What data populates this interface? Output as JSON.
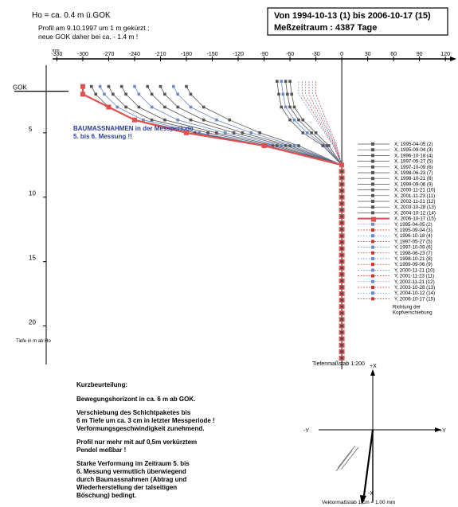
{
  "header": {
    "ho": "Ho = ca. 0.4 m  ü.GOK",
    "note_line1": "Profil am 9.10.1997 um 1 m gekürzt ;",
    "note_line2": "neue GOK daher bei ca.  - 1.4 m !",
    "period_line1": "Von 1994-10-13 (1) bis 2006-10-17 (15)",
    "period_line2": "Meßzeitraum : 4387 Tage"
  },
  "chart_data": {
    "type": "line",
    "title": "",
    "xlabel": "mm",
    "ylabel": "Tiefe in m ab Ho",
    "x_ticks": [
      -330,
      -300,
      -270,
      -240,
      -210,
      -180,
      -150,
      -120,
      -90,
      -60,
      -30,
      0,
      30,
      60,
      90,
      120
    ],
    "x_tick_labels": [
      "-330",
      "-300",
      "-270",
      "-240",
      "-210",
      "-180",
      "-150",
      "-120",
      "-90",
      "-60",
      "-30",
      "0",
      "30",
      "60",
      "90",
      "120"
    ],
    "xlim": [
      -335,
      130
    ],
    "y_ticks": [
      5,
      10,
      15,
      20
    ],
    "ylim": [
      0,
      23
    ],
    "gok_label": "GOK",
    "gok_depth": 1.4,
    "annotation_line1": "BAUMASSNAHMEN  in der Messperiode",
    "annotation_line2": "5. bis 6. Messung !!",
    "scale_label": "Tiefenmaßstab 1:200",
    "series_x": [
      {
        "name": "X, 1995-04-05 (2)",
        "depth": [
          1,
          2,
          3,
          4,
          5,
          6,
          7.5
        ],
        "values": [
          -60,
          -58,
          -55,
          -45,
          -30,
          -15,
          0
        ]
      },
      {
        "name": "X, 1995-09-04 (3)",
        "depth": [
          1,
          2,
          3,
          4,
          5,
          6,
          7.5
        ],
        "values": [
          -65,
          -63,
          -60,
          -50,
          -35,
          -18,
          0
        ]
      },
      {
        "name": "X, 1996-10-18 (4)",
        "depth": [
          1,
          2,
          3,
          4,
          5,
          6,
          7.5
        ],
        "values": [
          -70,
          -68,
          -65,
          -55,
          -40,
          -20,
          0
        ]
      },
      {
        "name": "X, 1997-05-27 (5)",
        "depth": [
          1,
          2,
          3,
          4,
          5,
          6,
          7.5
        ],
        "values": [
          -75,
          -73,
          -70,
          -60,
          -45,
          -22,
          0
        ]
      },
      {
        "name": "X, 1997-10-09 (6)",
        "depth": [
          1.4,
          2,
          3,
          4,
          5,
          6,
          7.5
        ],
        "values": [
          -180,
          -175,
          -160,
          -130,
          -95,
          -50,
          0
        ]
      },
      {
        "name": "X, 1998-06-23 (7)",
        "depth": [
          1.4,
          2,
          3,
          4,
          5,
          6,
          7.5
        ],
        "values": [
          -195,
          -190,
          -175,
          -145,
          -105,
          -55,
          0
        ]
      },
      {
        "name": "X, 1998-10-21 (8)",
        "depth": [
          1.4,
          2,
          3,
          4,
          5,
          6,
          7.5
        ],
        "values": [
          -210,
          -205,
          -190,
          -160,
          -115,
          -60,
          0
        ]
      },
      {
        "name": "X, 1999-09-06 (9)",
        "depth": [
          1.4,
          2,
          3,
          4,
          5,
          6,
          7.5
        ],
        "values": [
          -225,
          -220,
          -205,
          -175,
          -125,
          -65,
          0
        ]
      },
      {
        "name": "X, 2000-11-21 (10)",
        "depth": [
          1.4,
          2,
          3,
          4,
          5,
          6,
          7.5
        ],
        "values": [
          -240,
          -235,
          -220,
          -190,
          -135,
          -70,
          0
        ]
      },
      {
        "name": "X, 2001-11-23 (11)",
        "depth": [
          1.4,
          2,
          3,
          4,
          5,
          6,
          7.5
        ],
        "values": [
          -255,
          -250,
          -235,
          -205,
          -145,
          -75,
          0
        ]
      },
      {
        "name": "X, 2002-11-21 (12)",
        "depth": [
          1.4,
          2,
          3,
          4,
          5,
          6,
          7.5
        ],
        "values": [
          -270,
          -265,
          -250,
          -220,
          -155,
          -80,
          0
        ]
      },
      {
        "name": "X, 2003-10-28 (13)",
        "depth": [
          1.4,
          2,
          3,
          4,
          5,
          6,
          7.5
        ],
        "values": [
          -280,
          -275,
          -260,
          -230,
          -165,
          -85,
          0
        ]
      },
      {
        "name": "X, 2004-10-12 (14)",
        "depth": [
          1.4,
          2,
          3,
          4,
          5,
          6,
          7.5
        ],
        "values": [
          -290,
          -285,
          -270,
          -240,
          -170,
          -88,
          0
        ]
      },
      {
        "name": "X, 2006-10-17 (15)",
        "depth": [
          1.4,
          2,
          3,
          4,
          5,
          6,
          7.5
        ],
        "values": [
          -300,
          -300,
          -270,
          -240,
          -180,
          -90,
          0
        ]
      }
    ],
    "legend_y": [
      "Y, 1995-04-05 (2)",
      "Y, 1995-09-04 (3)",
      "Y, 1996-10-18 (4)",
      "Y, 1997-05-27 (5)",
      "Y, 1997-10-09 (6)",
      "Y, 1998-06-23 (7)",
      "Y, 1998-10-21 (8)",
      "Y, 1999-09-06 (9)",
      "Y, 2000-11-21 (10)",
      "Y, 2001-11-23 (11)",
      "Y, 2002-11-21 (12)",
      "Y, 2003-10-28 (13)",
      "Y, 2004-10-12 (14)",
      "Y, 2006-10-17 (15)"
    ],
    "colors": {
      "latest": "#e05050",
      "grey": "#555555",
      "blue": "#6a8acc",
      "red_dash": "#cc3333"
    }
  },
  "summary": {
    "title": "Kurzbeurteilung:",
    "p1": "Bewegungshorizont in ca. 6 m ab GOK.",
    "p2_l1": "Verschiebung des Schichtpaketes bis",
    "p2_l2": "6 m Tiefe um ca. 3 cm in letzter Messperiode !",
    "p2_l3": "Verformungsgeschwindigkeit zunehmend.",
    "p3_l1": "Profil nur mehr mit auf 0,5m verkürztem",
    "p3_l2": "Pendel meßbar !",
    "p4_l1": "Starke Verformung im Zeitraum 5. bis",
    "p4_l2": "6. Messung vermutlich überwiegend",
    "p4_l3": "durch Baumassnahmen (Abtrag und",
    "p4_l4": "Wiederherstellung der talseitigen",
    "p4_l5": "Böschung) bedingt."
  },
  "vector": {
    "plus_x": "+X",
    "minus_x": "-X",
    "plus_y": "+Y",
    "minus_y": "-Y",
    "direction_l1": "Richtung der",
    "direction_l2": "Kopfverschiebung",
    "scale": "Vektormaßstab 1 cm = 1.00 mm"
  }
}
